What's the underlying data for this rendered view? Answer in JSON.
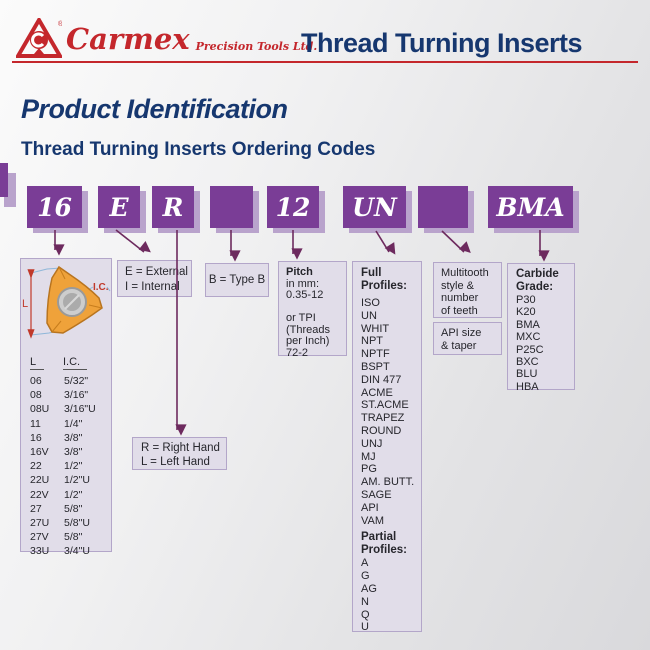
{
  "header": {
    "brand": "Carmex",
    "brand_sub": "Precision Tools Ltd.",
    "title": "Thread Turning Inserts"
  },
  "headings": {
    "main": "Product Identification",
    "sub": "Thread Turning Inserts Ordering Codes"
  },
  "colors": {
    "accent_purple": "#7a3d96",
    "shadow_purple": "#b9a3cc",
    "navy": "#16376f",
    "brand_red": "#c4272c",
    "arrow": "#6d2a5e",
    "box_fill": "#e1dde9"
  },
  "codes": [
    "16",
    "E",
    "R",
    "",
    "12",
    "UN",
    "",
    "BMA"
  ],
  "insert_box": {
    "dim_label": "L",
    "ic_label": "I.C.",
    "table": {
      "headers": [
        "L",
        "I.C."
      ],
      "rows": [
        [
          "06",
          "5/32\""
        ],
        [
          "08",
          "3/16\""
        ],
        [
          "08U",
          "3/16\"U"
        ],
        [
          "11",
          "1/4\""
        ],
        [
          "16",
          "3/8\""
        ],
        [
          "16V",
          "3/8\""
        ],
        [
          "22",
          "1/2\""
        ],
        [
          "22U",
          "1/2\"U"
        ],
        [
          "22V",
          "1/2\""
        ],
        [
          "27",
          "5/8\""
        ],
        [
          "27U",
          "5/8\"U"
        ],
        [
          "27V",
          "5/8\""
        ],
        [
          "33U",
          "3/4\"U"
        ]
      ]
    }
  },
  "external_box": {
    "line1": "E = External",
    "line2": "I = Internal"
  },
  "type_box": {
    "label": "B = Type B"
  },
  "hand_box": {
    "line1": "R = Right Hand",
    "line2": "L = Left Hand"
  },
  "pitch_box": {
    "title": "Pitch",
    "lines": [
      "in mm:",
      "0.35-12",
      "",
      "or TPI",
      "(Threads",
      "per Inch)",
      "72-2"
    ]
  },
  "profiles_box": {
    "full_title_1": "Full",
    "full_title_2": "Profiles:",
    "full_items": [
      "ISO",
      "UN",
      "WHIT",
      "NPT",
      "NPTF",
      "BSPT",
      "DIN 477",
      "ACME",
      "ST.ACME",
      "TRAPEZ",
      "ROUND",
      "UNJ",
      "MJ",
      "PG",
      "AM. BUTT.",
      "SAGE",
      "API",
      "VAM"
    ],
    "partial_title_1": "Partial",
    "partial_title_2": "Profiles:",
    "partial_items": [
      "A",
      "G",
      "AG",
      "N",
      "Q",
      "U"
    ]
  },
  "multitooth_box": {
    "lines": [
      "Multitooth",
      "style &",
      "number",
      "of teeth"
    ]
  },
  "api_box": {
    "lines": [
      "API size",
      "& taper"
    ]
  },
  "carbide_box": {
    "title_1": "Carbide",
    "title_2": "Grade:",
    "items": [
      "P30",
      "K20",
      "BMA",
      "MXC",
      "P25C",
      "BXC",
      "BLU",
      "HBA"
    ]
  }
}
